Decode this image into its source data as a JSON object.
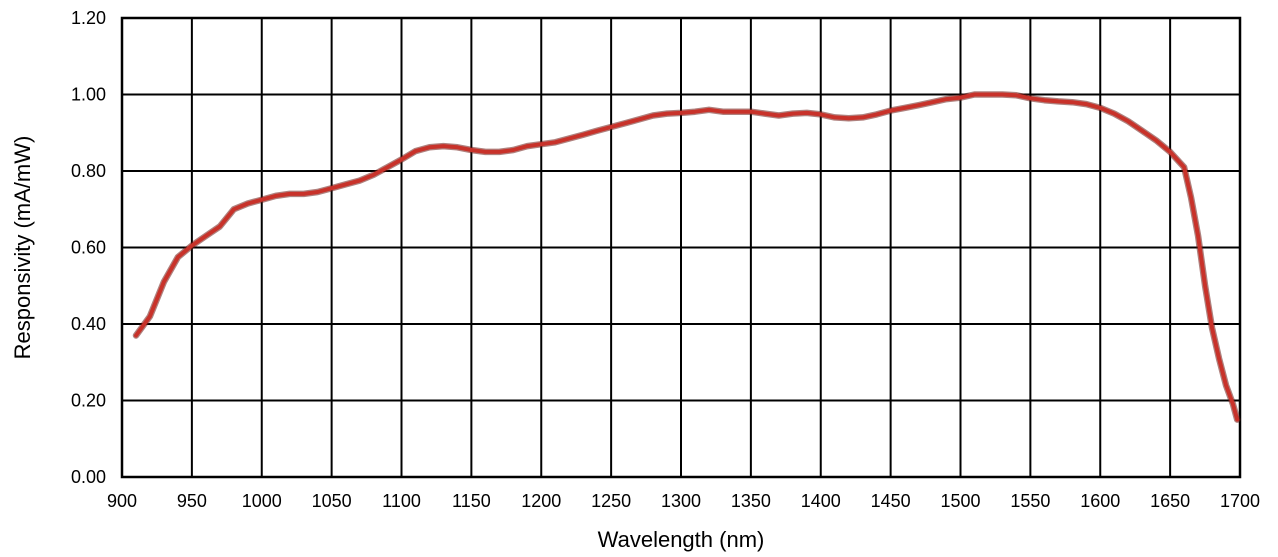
{
  "chart_data": {
    "type": "line",
    "title": "",
    "xlabel": "Wavelength (nm)",
    "ylabel": "Responsivity (mA/mW)",
    "xlim": [
      900,
      1700
    ],
    "ylim": [
      0.0,
      1.2
    ],
    "grid": true,
    "x_ticks": [
      "900",
      "950",
      "1000",
      "1050",
      "1100",
      "1150",
      "1200",
      "1250",
      "1300",
      "1350",
      "1400",
      "1450",
      "1500",
      "1550",
      "1600",
      "1650",
      "1700"
    ],
    "y_ticks": [
      "0.00",
      "0.20",
      "0.40",
      "0.60",
      "0.80",
      "1.00",
      "1.20"
    ],
    "series": [
      {
        "color": "#c8322a",
        "x": [
          910,
          920,
          930,
          940,
          950,
          960,
          970,
          980,
          990,
          1000,
          1010,
          1020,
          1030,
          1040,
          1050,
          1060,
          1070,
          1080,
          1090,
          1100,
          1110,
          1120,
          1130,
          1140,
          1150,
          1160,
          1170,
          1180,
          1190,
          1200,
          1210,
          1220,
          1230,
          1240,
          1250,
          1260,
          1270,
          1280,
          1290,
          1300,
          1310,
          1320,
          1330,
          1340,
          1350,
          1360,
          1370,
          1380,
          1390,
          1400,
          1410,
          1420,
          1430,
          1440,
          1450,
          1460,
          1470,
          1480,
          1490,
          1500,
          1510,
          1520,
          1530,
          1540,
          1550,
          1560,
          1570,
          1580,
          1590,
          1600,
          1610,
          1620,
          1630,
          1640,
          1650,
          1660,
          1665,
          1670,
          1675,
          1680,
          1685,
          1690,
          1695,
          1698
        ],
        "values": [
          0.37,
          0.42,
          0.51,
          0.575,
          0.605,
          0.63,
          0.655,
          0.7,
          0.715,
          0.725,
          0.735,
          0.74,
          0.74,
          0.745,
          0.755,
          0.765,
          0.775,
          0.79,
          0.81,
          0.83,
          0.852,
          0.862,
          0.865,
          0.862,
          0.855,
          0.85,
          0.85,
          0.855,
          0.865,
          0.87,
          0.875,
          0.885,
          0.895,
          0.905,
          0.915,
          0.925,
          0.935,
          0.945,
          0.95,
          0.952,
          0.955,
          0.96,
          0.955,
          0.955,
          0.955,
          0.95,
          0.945,
          0.95,
          0.952,
          0.948,
          0.94,
          0.938,
          0.94,
          0.948,
          0.958,
          0.965,
          0.972,
          0.98,
          0.988,
          0.992,
          1.0,
          1.0,
          1.0,
          0.998,
          0.99,
          0.985,
          0.982,
          0.98,
          0.975,
          0.965,
          0.95,
          0.93,
          0.905,
          0.88,
          0.85,
          0.81,
          0.73,
          0.63,
          0.5,
          0.39,
          0.31,
          0.24,
          0.19,
          0.15
        ]
      }
    ]
  }
}
